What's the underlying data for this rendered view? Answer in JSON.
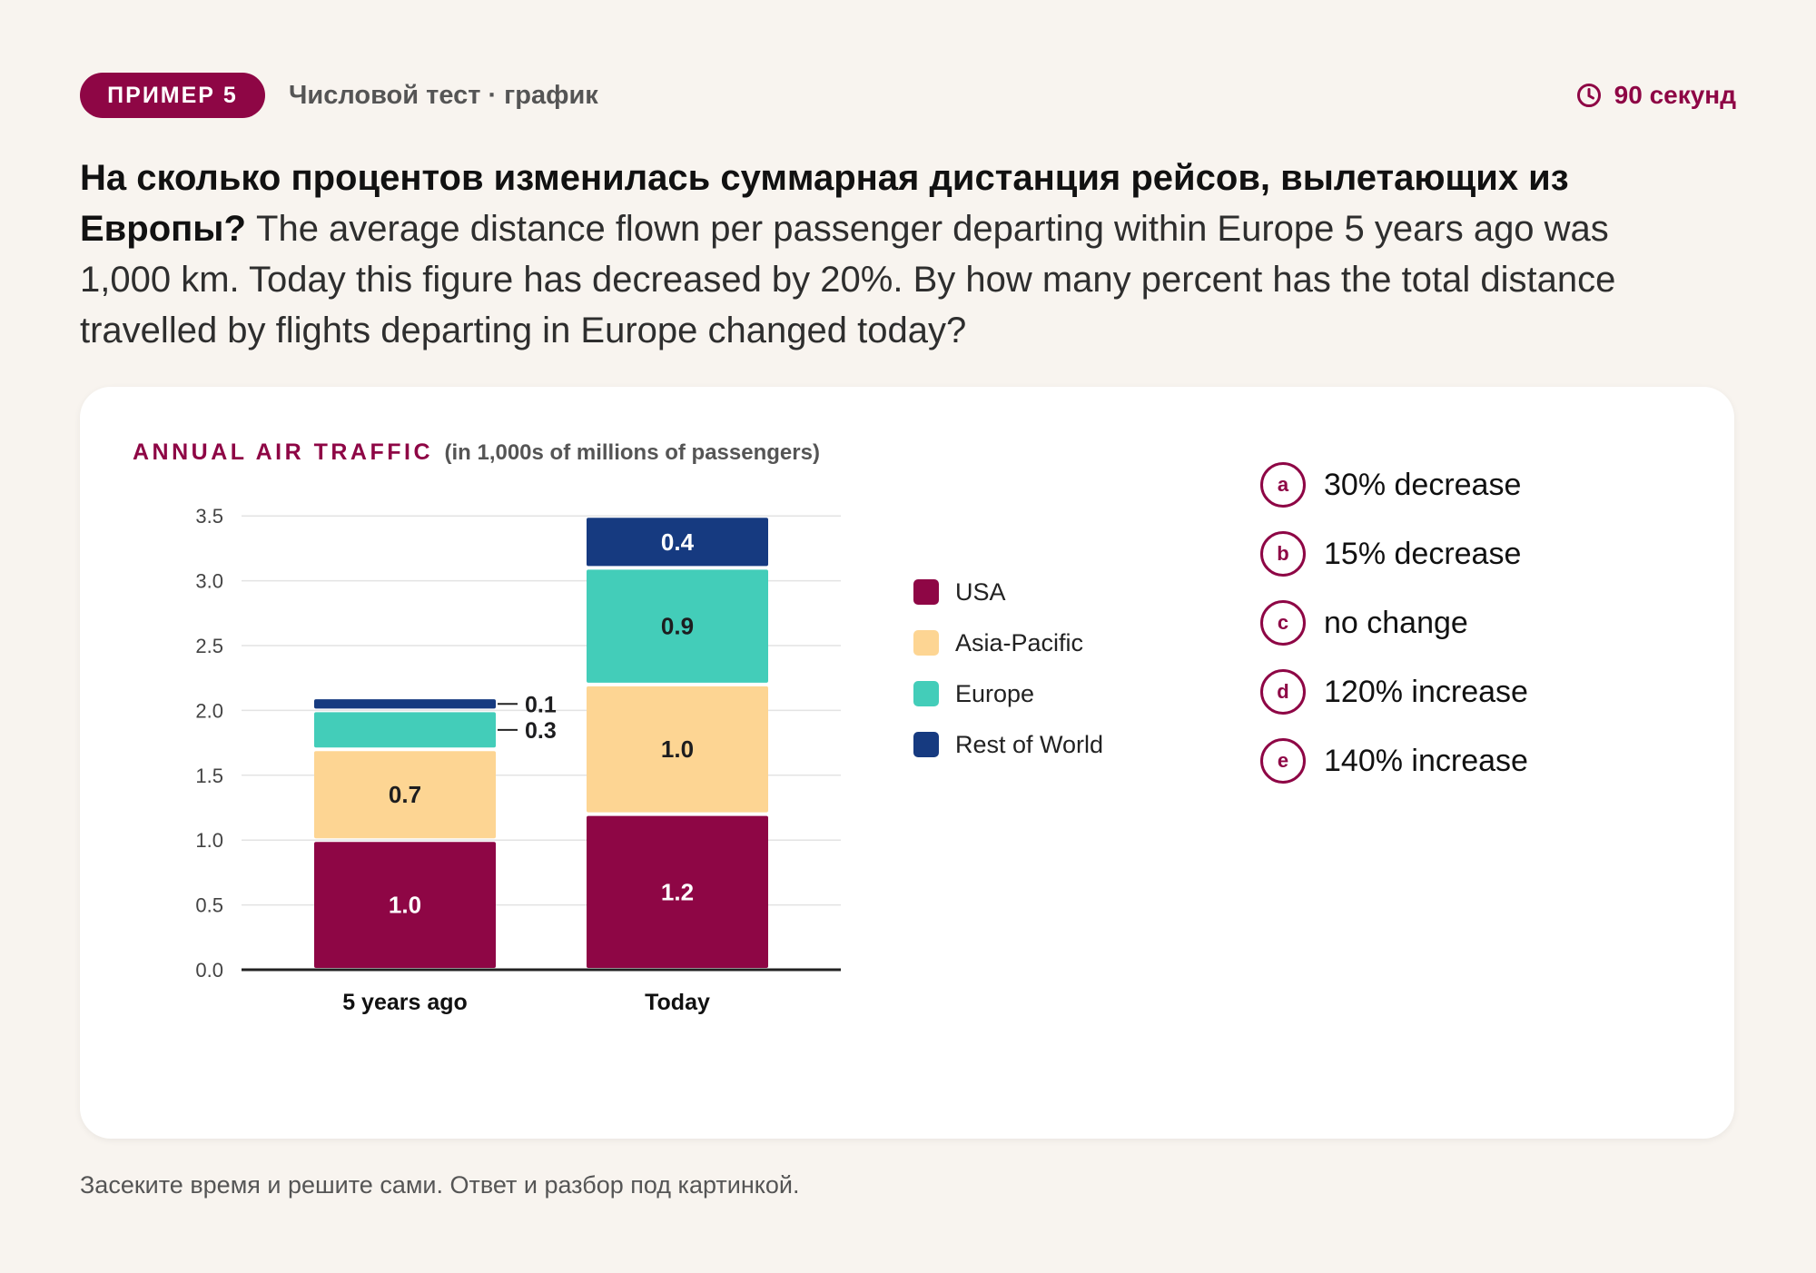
{
  "header": {
    "badge": "ПРИМЕР 5",
    "subtitle": "Числовой тест · график",
    "timer": "90 секунд"
  },
  "question": {
    "ru": "На сколько процентов изменилась суммарная дистанция рейсов, вылетающих из Европы?",
    "en": "The average distance flown per passenger departing within Europe 5 years ago was 1,000 km. Today this figure has decreased by 20%. By how many percent has the total distance travelled by flights departing in Europe changed today?"
  },
  "chart_data": {
    "type": "bar",
    "stacked": true,
    "title": "ANNUAL AIR TRAFFIC",
    "subtitle": "(in 1,000s of millions of passengers)",
    "categories": [
      "5 years ago",
      "Today"
    ],
    "series": [
      {
        "name": "USA",
        "values": [
          1.0,
          1.2
        ],
        "color": "#8e0645",
        "label_color": "#ffffff"
      },
      {
        "name": "Asia-Pacific",
        "values": [
          0.7,
          1.0
        ],
        "color": "#fdd593",
        "label_color": "#1d1d1f"
      },
      {
        "name": "Europe",
        "values": [
          0.3,
          0.9
        ],
        "color": "#43cdb9",
        "label_color": "#1d1d1f"
      },
      {
        "name": "Rest of World",
        "values": [
          0.1,
          0.4
        ],
        "color": "#163a80",
        "label_color": "#ffffff"
      }
    ],
    "value_labels": [
      [
        "1.0",
        "1.2"
      ],
      [
        "0.7",
        "1.0"
      ],
      [
        "0.3",
        "0.9"
      ],
      [
        "0.1",
        "0.4"
      ]
    ],
    "ylim": [
      0,
      3.5
    ],
    "yticks": [
      "0.0",
      "0.5",
      "1.0",
      "1.5",
      "2.0",
      "2.5",
      "3.0",
      "3.5"
    ],
    "grid": true,
    "legend": "right"
  },
  "answers": [
    {
      "letter": "a",
      "text": "30% decrease"
    },
    {
      "letter": "b",
      "text": "15% decrease"
    },
    {
      "letter": "c",
      "text": "no change"
    },
    {
      "letter": "d",
      "text": "120% increase"
    },
    {
      "letter": "e",
      "text": "140% increase"
    }
  ],
  "footer": "Засеките время и решите сами. Ответ и разбор под картинкой.",
  "colors": {
    "accent": "#8e0645",
    "background": "#f8f4ef",
    "card": "#ffffff"
  },
  "icons": {
    "timer": "clock-icon"
  }
}
